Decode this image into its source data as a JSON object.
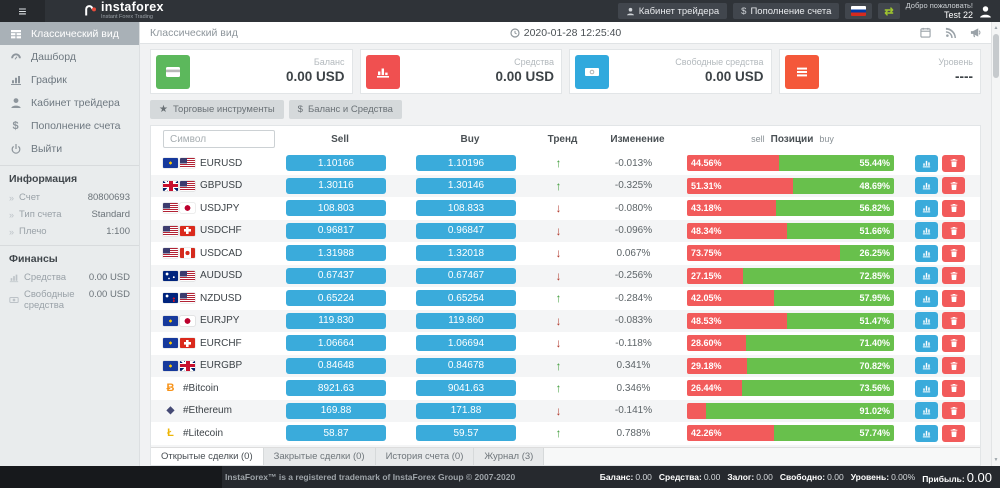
{
  "header": {
    "brand": "instaforex",
    "brand_tagline": "Instant Forex Trading",
    "cabinet_button": "Кабинет трейдера",
    "deposit_button": "Пополнение счета",
    "deposit_prefix": "$",
    "welcome_line1": "Добро пожаловать!",
    "welcome_line2": "Test 22"
  },
  "sidebar": {
    "items": [
      {
        "label": "Классический вид",
        "icon": "grid-icon",
        "active": true
      },
      {
        "label": "Дашборд",
        "icon": "dashboard-icon",
        "active": false
      },
      {
        "label": "График",
        "icon": "chart-icon",
        "active": false
      },
      {
        "label": "Кабинет трейдера",
        "icon": "user-icon",
        "active": false
      },
      {
        "label": "Пополнение счета",
        "icon": "dollar-icon",
        "active": false
      },
      {
        "label": "Выйти",
        "icon": "power-icon",
        "active": false
      }
    ],
    "info_title": "Информация",
    "info": [
      {
        "label": "Счет",
        "value": "80800693"
      },
      {
        "label": "Тип счета",
        "value": "Standard"
      },
      {
        "label": "Плечо",
        "value": "1:100"
      }
    ],
    "finance_title": "Финансы",
    "finance": [
      {
        "label": "Средства",
        "value": "0.00 USD",
        "icon": "funds-icon"
      },
      {
        "label": "Свободные средства",
        "value": "0.00 USD",
        "icon": "free-funds-icon"
      }
    ]
  },
  "topbar": {
    "title": "Классический вид",
    "datetime": "2020-01-28 12:25:40"
  },
  "cards": [
    {
      "label": "Баланс",
      "value": "0.00 USD",
      "icon": "credit-card-icon",
      "color": "#5cb85c"
    },
    {
      "label": "Средства",
      "value": "0.00 USD",
      "icon": "bar-chart-icon",
      "color": "#f05050"
    },
    {
      "label": "Свободные средства",
      "value": "0.00 USD",
      "icon": "banknote-icon",
      "color": "#31a9dd"
    },
    {
      "label": "Уровень",
      "value": "----",
      "icon": "list-icon",
      "color": "#f4583a"
    }
  ],
  "toolbar": {
    "instruments": "Торговые инструменты",
    "instruments_prefix": "★",
    "balance": "Баланс и Средства",
    "balance_prefix": "$"
  },
  "table": {
    "symbol_placeholder": "Символ",
    "headers": {
      "sell": "Sell",
      "buy": "Buy",
      "trend": "Тренд",
      "change": "Изменение",
      "pos_sell": "sell",
      "pos_center": "Позиции",
      "pos_buy": "buy"
    },
    "rows": [
      {
        "symbol": "EURUSD",
        "icons": [
          "eu",
          "us"
        ],
        "sell": "1.10166",
        "buy": "1.10196",
        "trend": "up",
        "change": "-0.013%",
        "sell_pct": 44.56,
        "buy_pct": 55.44,
        "sell_label": "44.56%",
        "buy_label": "55.44%"
      },
      {
        "symbol": "GBPUSD",
        "icons": [
          "gb",
          "us"
        ],
        "sell": "1.30116",
        "buy": "1.30146",
        "trend": "up",
        "change": "-0.325%",
        "sell_pct": 51.31,
        "buy_pct": 48.69,
        "sell_label": "51.31%",
        "buy_label": "48.69%"
      },
      {
        "symbol": "USDJPY",
        "icons": [
          "us",
          "jp"
        ],
        "sell": "108.803",
        "buy": "108.833",
        "trend": "down",
        "change": "-0.080%",
        "sell_pct": 43.18,
        "buy_pct": 56.82,
        "sell_label": "43.18%",
        "buy_label": "56.82%"
      },
      {
        "symbol": "USDCHF",
        "icons": [
          "us",
          "ch"
        ],
        "sell": "0.96817",
        "buy": "0.96847",
        "trend": "down",
        "change": "-0.096%",
        "sell_pct": 48.34,
        "buy_pct": 51.66,
        "sell_label": "48.34%",
        "buy_label": "51.66%"
      },
      {
        "symbol": "USDCAD",
        "icons": [
          "us",
          "ca"
        ],
        "sell": "1.31988",
        "buy": "1.32018",
        "trend": "down",
        "change": "0.067%",
        "sell_pct": 73.75,
        "buy_pct": 26.25,
        "sell_label": "73.75%",
        "buy_label": "26.25%"
      },
      {
        "symbol": "AUDUSD",
        "icons": [
          "au",
          "us"
        ],
        "sell": "0.67437",
        "buy": "0.67467",
        "trend": "down",
        "change": "-0.256%",
        "sell_pct": 27.15,
        "buy_pct": 72.85,
        "sell_label": "27.15%",
        "buy_label": "72.85%"
      },
      {
        "symbol": "NZDUSD",
        "icons": [
          "nz",
          "us"
        ],
        "sell": "0.65224",
        "buy": "0.65254",
        "trend": "up",
        "change": "-0.284%",
        "sell_pct": 42.05,
        "buy_pct": 57.95,
        "sell_label": "42.05%",
        "buy_label": "57.95%"
      },
      {
        "symbol": "EURJPY",
        "icons": [
          "eu",
          "jp"
        ],
        "sell": "119.830",
        "buy": "119.860",
        "trend": "down",
        "change": "-0.083%",
        "sell_pct": 48.53,
        "buy_pct": 51.47,
        "sell_label": "48.53%",
        "buy_label": "51.47%"
      },
      {
        "symbol": "EURCHF",
        "icons": [
          "eu",
          "ch"
        ],
        "sell": "1.06664",
        "buy": "1.06694",
        "trend": "down",
        "change": "-0.118%",
        "sell_pct": 28.6,
        "buy_pct": 71.4,
        "sell_label": "28.60%",
        "buy_label": "71.40%"
      },
      {
        "symbol": "EURGBP",
        "icons": [
          "eu",
          "gb"
        ],
        "sell": "0.84648",
        "buy": "0.84678",
        "trend": "up",
        "change": "0.341%",
        "sell_pct": 29.18,
        "buy_pct": 70.82,
        "sell_label": "29.18%",
        "buy_label": "70.82%"
      },
      {
        "symbol": "#Bitcoin",
        "icons": [
          "btc"
        ],
        "sell": "8921.63",
        "buy": "9041.63",
        "trend": "up",
        "change": "0.346%",
        "sell_pct": 26.44,
        "buy_pct": 73.56,
        "sell_label": "26.44%",
        "buy_label": "73.56%"
      },
      {
        "symbol": "#Ethereum",
        "icons": [
          "eth"
        ],
        "sell": "169.88",
        "buy": "171.88",
        "trend": "down",
        "change": "-0.141%",
        "sell_pct": 8.98,
        "buy_pct": 91.02,
        "sell_label": "",
        "buy_label": "91.02%"
      },
      {
        "symbol": "#Litecoin",
        "icons": [
          "ltc"
        ],
        "sell": "58.87",
        "buy": "59.57",
        "trend": "up",
        "change": "0.788%",
        "sell_pct": 42.26,
        "buy_pct": 57.74,
        "sell_label": "42.26%",
        "buy_label": "57.74%"
      },
      {
        "symbol": "",
        "icons": [],
        "sell": "",
        "buy": "",
        "trend": "",
        "change": "",
        "sell_pct": 2,
        "buy_pct": 98,
        "sell_label": "",
        "buy_label": ""
      }
    ]
  },
  "tabs": [
    {
      "label": "Открытые сделки (0)",
      "active": true
    },
    {
      "label": "Закрытые сделки (0)",
      "active": false
    },
    {
      "label": "История счета (0)",
      "active": false
    },
    {
      "label": "Журнал (3)",
      "active": false
    }
  ],
  "footer": {
    "trademark": "InstaForex™ is a registered trademark of InstaForex Group © 2007-2020",
    "stats": [
      {
        "label": "Баланс:",
        "value": "0.00"
      },
      {
        "label": "Средства:",
        "value": "0.00"
      },
      {
        "label": "Залог:",
        "value": "0.00"
      },
      {
        "label": "Свободно:",
        "value": "0.00"
      },
      {
        "label": "Уровень:",
        "value": "0.00%"
      },
      {
        "label": "Прибыль:",
        "value": "0.00",
        "big": true
      }
    ]
  }
}
